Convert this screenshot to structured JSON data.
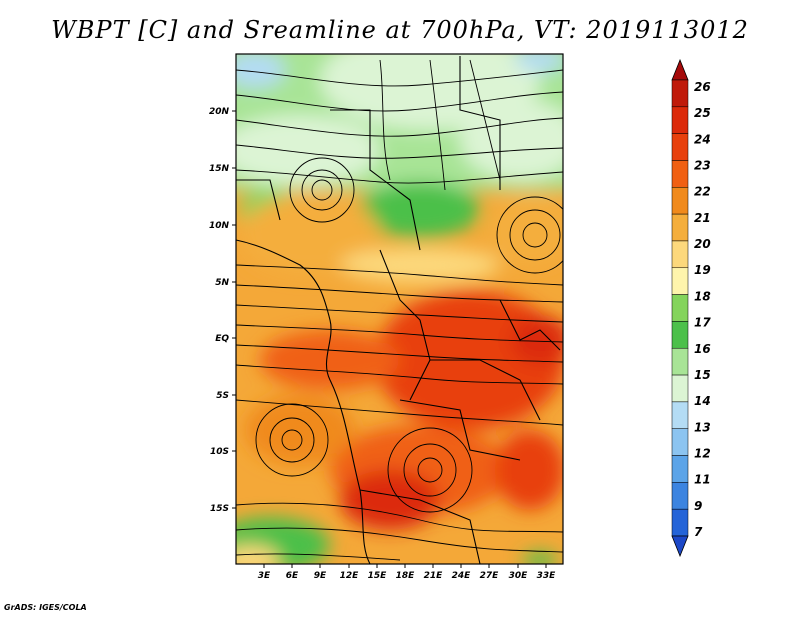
{
  "title": "WBPT [C] and Sreamline at 700hPa, VT: 2019113012",
  "credit": "GrADS: IGES/COLA",
  "lat_labels": [
    "20N",
    "15N",
    "10N",
    "5N",
    "EQ",
    "5S",
    "10S",
    "15S"
  ],
  "lon_labels": [
    "3E",
    "6E",
    "9E",
    "12E",
    "15E",
    "18E",
    "21E",
    "24E",
    "27E",
    "30E",
    "33E"
  ],
  "colorbar": {
    "labels": [
      "26",
      "25",
      "24",
      "23",
      "22",
      "21",
      "20",
      "19",
      "18",
      "17",
      "16",
      "15",
      "14",
      "13",
      "12",
      "11",
      "9",
      "7"
    ],
    "colors": [
      "#a50a0a",
      "#c01a0a",
      "#dc2a0a",
      "#e8400c",
      "#f06012",
      "#f08a1c",
      "#f4ae3c",
      "#fcd87c",
      "#fef4ac",
      "#84d45c",
      "#4cc04a",
      "#a8e496",
      "#dcf4d4",
      "#b4dcf4",
      "#8cc4f0",
      "#5ca4e8",
      "#3c84e0",
      "#2464d8",
      "#1c48c8"
    ]
  },
  "colors": {
    "frame": "#000000",
    "streamline": "#000000",
    "border": "#000000"
  }
}
